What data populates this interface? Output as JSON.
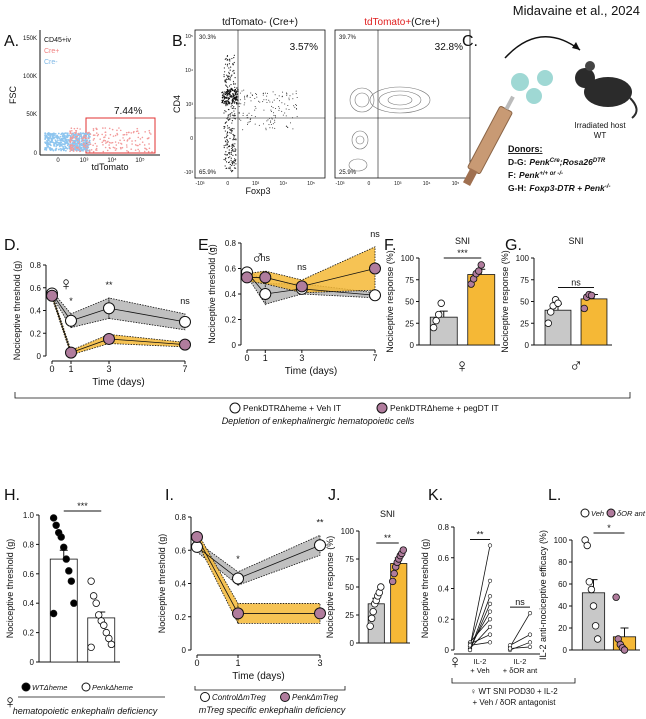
{
  "header": {
    "citation": "Midavaine et al., 2024"
  },
  "panels": {
    "A": "A.",
    "B": "B.",
    "C": "C.",
    "D": "D.",
    "E": "E.",
    "F": "F.",
    "G": "G.",
    "H": "H.",
    "I": "I.",
    "J": "J.",
    "K": "K.",
    "L": "L."
  },
  "flow": {
    "A": {
      "gates": [
        "CD45+iv",
        "Cre+",
        "Cre-"
      ],
      "gate_percent": "7.44%",
      "ylabel": "FSC",
      "xlabel": "tdTomato",
      "yticks": [
        "150K",
        "100K",
        "50K",
        "0"
      ],
      "xticks": [
        "0",
        "10³",
        "10⁴",
        "10⁵"
      ]
    },
    "B": {
      "left_title": "tdTomato- (Cre+)",
      "right_title": [
        "tdTomato+",
        "(Cre+)"
      ],
      "left_percent": "3.57%",
      "right_percent": "32.8%",
      "left_corners": [
        "30.3%",
        "65.9%"
      ],
      "right_corners": [
        "39.7%",
        "25.9%"
      ],
      "ylabel": "CD4",
      "xlabel": "Foxp3",
      "yticks": [
        "10⁵",
        "10⁴",
        "10³",
        "0",
        "-10³"
      ],
      "xticks": [
        "-10³",
        "0",
        "10³",
        "10⁴",
        "10⁵"
      ]
    }
  },
  "diagram": {
    "host": [
      "Irradiated host",
      "WT"
    ],
    "donors_title": "Donors:",
    "donors": [
      {
        "label": "D-G:",
        "parts": [
          {
            "text": "Penk"
          },
          {
            "text": "Cre",
            "sup": true
          },
          {
            "text": ";Rosa26"
          },
          {
            "text": "DTR",
            "sup": true
          }
        ]
      },
      {
        "label": "F:",
        "parts": [
          {
            "text": "Penk"
          },
          {
            "text": "+/+ or -/-",
            "sup": true
          }
        ]
      },
      {
        "label": "G-H:",
        "parts": [
          {
            "text": "Foxp3"
          },
          {
            "text": "-DTR + "
          },
          {
            "text": "Penk"
          },
          {
            "text": "-/-",
            "sup": true
          }
        ]
      }
    ]
  },
  "legends": {
    "depletion": "Depletion of enkephalinergic hematopoietic cells"
  },
  "chart_data": [
    {
      "type": "line",
      "ylabel": "Nociceptive threshold (g)",
      "xlabel": "Time (days)",
      "symbol": "♀",
      "x": [
        0,
        1,
        3,
        7
      ],
      "xlim": [
        0,
        7
      ],
      "xticks": [
        0,
        1,
        3,
        7
      ],
      "ylim": [
        0,
        0.8
      ],
      "yticks": [
        0,
        0.2,
        0.4,
        0.6,
        0.8
      ],
      "series": [
        {
          "name": "PenkDTRΔheme + Veh IT",
          "color": "#ffffff",
          "band_color": "#b5b5b5",
          "values": [
            0.55,
            0.31,
            0.42,
            0.3
          ],
          "errors": [
            0.02,
            0.06,
            0.09,
            0.07
          ]
        },
        {
          "name": "PenkDTRΔheme + pegDT IT",
          "color": "#b07c9d",
          "band_color": "#f5b836",
          "values": [
            0.53,
            0.03,
            0.15,
            0.1
          ],
          "errors": [
            0.02,
            0.02,
            0.04,
            0.02
          ]
        }
      ],
      "annotations": [
        {
          "x": 1,
          "text": "*"
        },
        {
          "x": 3,
          "text": "**"
        },
        {
          "x": 7,
          "text": "ns"
        }
      ]
    },
    {
      "type": "line",
      "ylabel": "Nociceptive threshold (g)",
      "xlabel": "Time (days)",
      "symbol": "♂",
      "x": [
        0,
        1,
        3,
        7
      ],
      "xlim": [
        0,
        7
      ],
      "xticks": [
        0,
        1,
        3,
        7
      ],
      "ylim": [
        0,
        0.8
      ],
      "yticks": [
        0,
        0.2,
        0.4,
        0.6,
        0.8
      ],
      "series": [
        {
          "color": "#ffffff",
          "band_color": "#b5b5b5",
          "values": [
            0.57,
            0.4,
            0.44,
            0.39
          ],
          "errors": [
            0.03,
            0.08,
            0.04,
            0.02
          ]
        },
        {
          "color": "#b07c9d",
          "band_color": "#f5b836",
          "values": [
            0.53,
            0.53,
            0.46,
            0.6
          ],
          "errors": [
            0.03,
            0.05,
            0.05,
            0.17
          ]
        }
      ],
      "annotations": [
        {
          "x": 1,
          "text": "ns"
        },
        {
          "x": 3,
          "text": "ns"
        },
        {
          "x": 7,
          "text": "ns"
        }
      ]
    },
    {
      "type": "bar",
      "title": "SNI",
      "ylabel": "Nociceptive response (%)",
      "symbol": "♀",
      "ylim": [
        0,
        100
      ],
      "yticks": [
        0,
        25,
        50,
        75,
        100
      ],
      "values": [
        32,
        81
      ],
      "errors": [
        7,
        6
      ],
      "colors": [
        "#c8c8c8",
        "#f5b836"
      ],
      "points": [
        [
          20,
          28,
          35,
          48
        ],
        [
          70,
          76,
          82,
          85,
          92
        ]
      ],
      "point_colors": [
        "#ffffff",
        "#b07c9d"
      ],
      "annotation": "***"
    },
    {
      "type": "bar",
      "title": "SNI",
      "ylabel": "Nociceptive response (%)",
      "symbol": "♂",
      "ylim": [
        0,
        100
      ],
      "yticks": [
        0,
        25,
        50,
        75,
        100
      ],
      "values": [
        40,
        53
      ],
      "errors": [
        7,
        5
      ],
      "colors": [
        "#c8c8c8",
        "#f5b836"
      ],
      "points": [
        [
          25,
          38,
          45,
          52,
          48
        ],
        [
          42,
          55,
          58,
          57
        ]
      ],
      "point_colors": [
        "#ffffff",
        "#b07c9d"
      ],
      "annotation": "ns"
    },
    {
      "type": "bar",
      "ylabel": "Nociceptive threshold (g)",
      "symbol": "♀",
      "ylim": [
        0,
        1
      ],
      "yticks": [
        0,
        0.2,
        0.4,
        0.6,
        0.8,
        {
          "value": 1,
          "label": "1.0"
        }
      ],
      "values": [
        0.7,
        0.3
      ],
      "errors": [
        0.06,
        0.04
      ],
      "colors": [
        "#ffffff",
        "#ffffff"
      ],
      "points": [
        [
          0.98,
          0.93,
          0.88,
          0.85,
          0.78,
          0.7,
          0.62,
          0.55,
          0.4,
          0.33
        ],
        [
          0.55,
          0.45,
          0.4,
          0.32,
          0.28,
          0.25,
          0.2,
          0.16,
          0.12,
          0.1
        ]
      ],
      "point_colors": [
        "#000000",
        "#ffffff"
      ],
      "categories": [
        "WTΔheme",
        "PenkΔheme"
      ],
      "annotation": "***",
      "caption": "hematopoietic enkephalin deficiency"
    },
    {
      "type": "line",
      "ylabel": "Nociceptive threshold (g)",
      "xlabel": "Time (days)",
      "x": [
        0,
        1,
        3
      ],
      "xlim": [
        0,
        3
      ],
      "xticks": [
        0,
        1,
        3
      ],
      "ylim": [
        0,
        0.8
      ],
      "yticks": [
        0,
        0.2,
        0.4,
        0.6,
        0.8
      ],
      "series": [
        {
          "name": "ControlΔmTreg",
          "color": "#ffffff",
          "band_color": "#b5b5b5",
          "values": [
            0.62,
            0.43,
            0.63
          ],
          "errors": [
            0.03,
            0.04,
            0.06
          ]
        },
        {
          "name": "PenkΔmTreg",
          "color": "#b07c9d",
          "band_color": "#f5b836",
          "values": [
            0.68,
            0.22,
            0.22
          ],
          "errors": [
            0.03,
            0.06,
            0.06
          ]
        }
      ],
      "annotations": [
        {
          "x": 1,
          "text": "*"
        },
        {
          "x": 3,
          "text": "**"
        }
      ],
      "caption": "mTreg specific enkephalin deficiency"
    },
    {
      "type": "bar",
      "title": "SNI",
      "ylabel": "Nociceptive response (%)",
      "symbol": "♀",
      "ylim": [
        0,
        100
      ],
      "yticks": [
        0,
        25,
        50,
        75,
        100
      ],
      "values": [
        35,
        71
      ],
      "errors": [
        5,
        5
      ],
      "colors": [
        "#c8c8c8",
        "#f5b836"
      ],
      "points": [
        [
          15,
          22,
          28,
          35,
          38,
          42,
          45,
          50
        ],
        [
          55,
          62,
          68,
          72,
          75,
          78,
          80,
          83
        ]
      ],
      "point_colors": [
        "#ffffff",
        "#b07c9d"
      ],
      "annotation": "**"
    },
    {
      "type": "paired",
      "ylabel": "Nociceptive threshold (g)",
      "ylim": [
        0,
        0.8
      ],
      "yticks": [
        0,
        0.2,
        0.4,
        0.6,
        0.8
      ],
      "categories": [
        [
          "IL-2",
          "+ Veh"
        ],
        [
          "IL-2",
          "+ δOR ant"
        ]
      ],
      "pairs": [
        {
          "pre": [
            0.02,
            0.03,
            0.0,
            0.05,
            0.01,
            0.02,
            0.04,
            0.03,
            0.0
          ],
          "post": [
            0.68,
            0.45,
            0.3,
            0.2,
            0.15,
            0.25,
            0.1,
            0.05,
            0.35
          ]
        },
        {
          "pre": [
            0.02,
            0.0,
            0.03,
            0.01
          ],
          "post": [
            0.24,
            0.05,
            0.1,
            0.02
          ]
        }
      ],
      "annotations": [
        "**",
        "ns"
      ],
      "note": [
        "♀ WT SNI POD30 + IL-2",
        "+ Veh / δOR antagonist"
      ]
    },
    {
      "type": "bar",
      "ylabel": "IL-2 anti-nociceptive efficacy (%)",
      "ylim": [
        0,
        100
      ],
      "yticks": [
        0,
        20,
        40,
        60,
        80,
        100
      ],
      "values": [
        52,
        12
      ],
      "errors": [
        12,
        8
      ],
      "colors": [
        "#c8c8c8",
        "#f5b836"
      ],
      "points": [
        [
          100,
          95,
          62,
          55,
          40,
          22,
          10
        ],
        [
          48,
          10,
          5,
          2,
          0
        ]
      ],
      "point_colors": [
        "#ffffff",
        "#b07c9d"
      ],
      "categories": [
        "Veh",
        "δOR ant"
      ],
      "annotation": "*"
    }
  ]
}
